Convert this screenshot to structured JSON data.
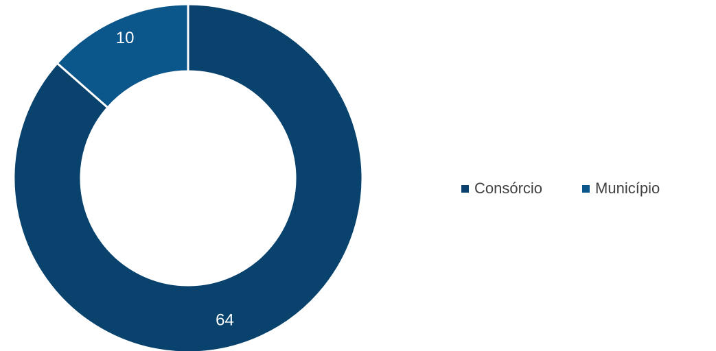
{
  "chart_data": {
    "type": "pie",
    "variant": "donut",
    "title": "",
    "categories": [
      "Consórcio",
      "Município"
    ],
    "values": [
      64,
      10
    ],
    "data_labels": [
      "64",
      "10"
    ],
    "colors": [
      "#08426D",
      "#0B568A"
    ],
    "separator_color": "#ffffff",
    "label_color": "#ffffff",
    "start": "12 o'clock, clockwise",
    "legend_position": "right"
  },
  "legend": {
    "items": [
      {
        "label": "Consórcio",
        "color": "#08426D"
      },
      {
        "label": "Município",
        "color": "#0B568A"
      }
    ]
  }
}
